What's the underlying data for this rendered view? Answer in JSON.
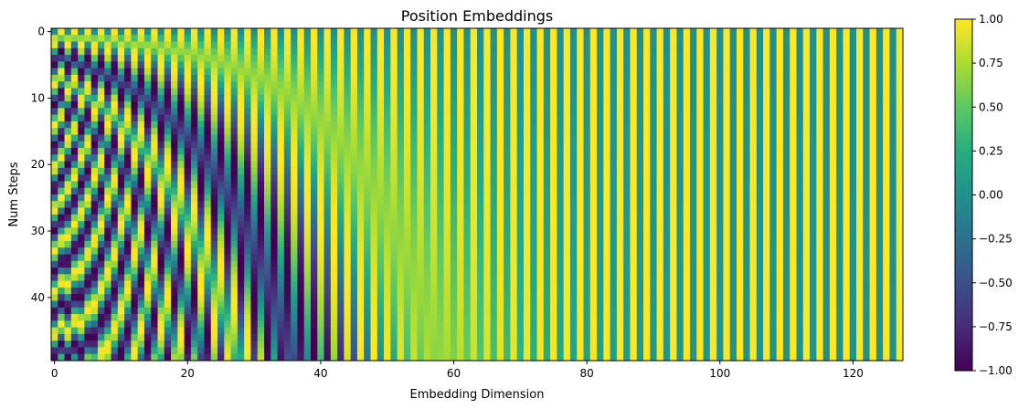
{
  "chart_data": {
    "type": "heatmap",
    "title": "Position Embeddings",
    "xlabel": "Embedding Dimension",
    "ylabel": "Num Steps",
    "rows": 50,
    "cols": 128,
    "xlim": [
      -0.5,
      127.5
    ],
    "ylim": [
      49.5,
      -0.5
    ],
    "y_axis_inverted": true,
    "encoding": "sinusoidal positional encoding: even dims sin(pos / 10000^(2i/128)), odd dims cos(pos / 10000^(2i/128))",
    "d_model": 128,
    "base": 10000,
    "x_ticks": [
      0,
      20,
      40,
      60,
      80,
      100,
      120
    ],
    "x_tick_labels": [
      "0",
      "20",
      "40",
      "60",
      "80",
      "100",
      "120"
    ],
    "y_ticks": [
      0,
      10,
      20,
      30,
      40
    ],
    "y_tick_labels": [
      "0",
      "10",
      "20",
      "30",
      "40"
    ],
    "colormap": "viridis",
    "colorbar": {
      "vmin": -1.0,
      "vmax": 1.0,
      "ticks": [
        1.0,
        0.75,
        0.5,
        0.25,
        0.0,
        -0.25,
        -0.5,
        -0.75,
        -1.0
      ],
      "tick_labels": [
        "1.00",
        "0.75",
        "0.50",
        "0.25",
        "0.00",
        "−0.25",
        "−0.50",
        "−0.75",
        "−1.00"
      ]
    },
    "grid": false
  }
}
